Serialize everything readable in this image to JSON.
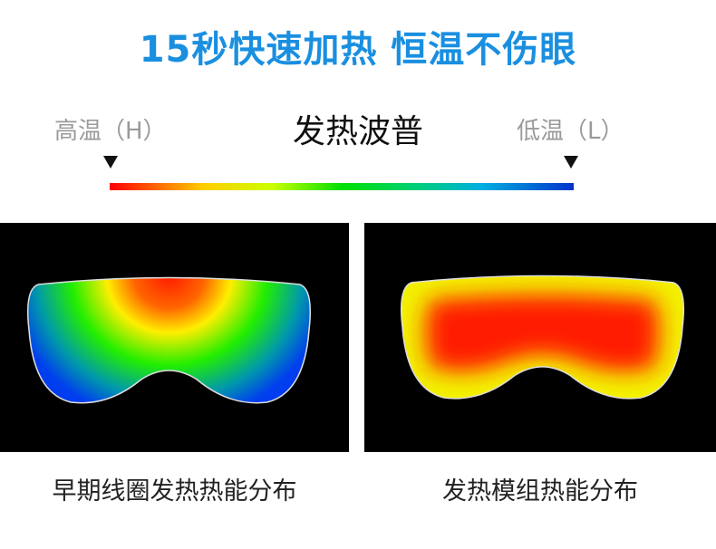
{
  "header": {
    "title": "15秒快速加热 恒温不伤眼"
  },
  "spectrum": {
    "label": "发热波普",
    "high": "高温（H）",
    "low": "低温（L）"
  },
  "panels": [
    {
      "caption": "早期线圈发热热能分布"
    },
    {
      "caption": "发热模组热能分布"
    }
  ]
}
